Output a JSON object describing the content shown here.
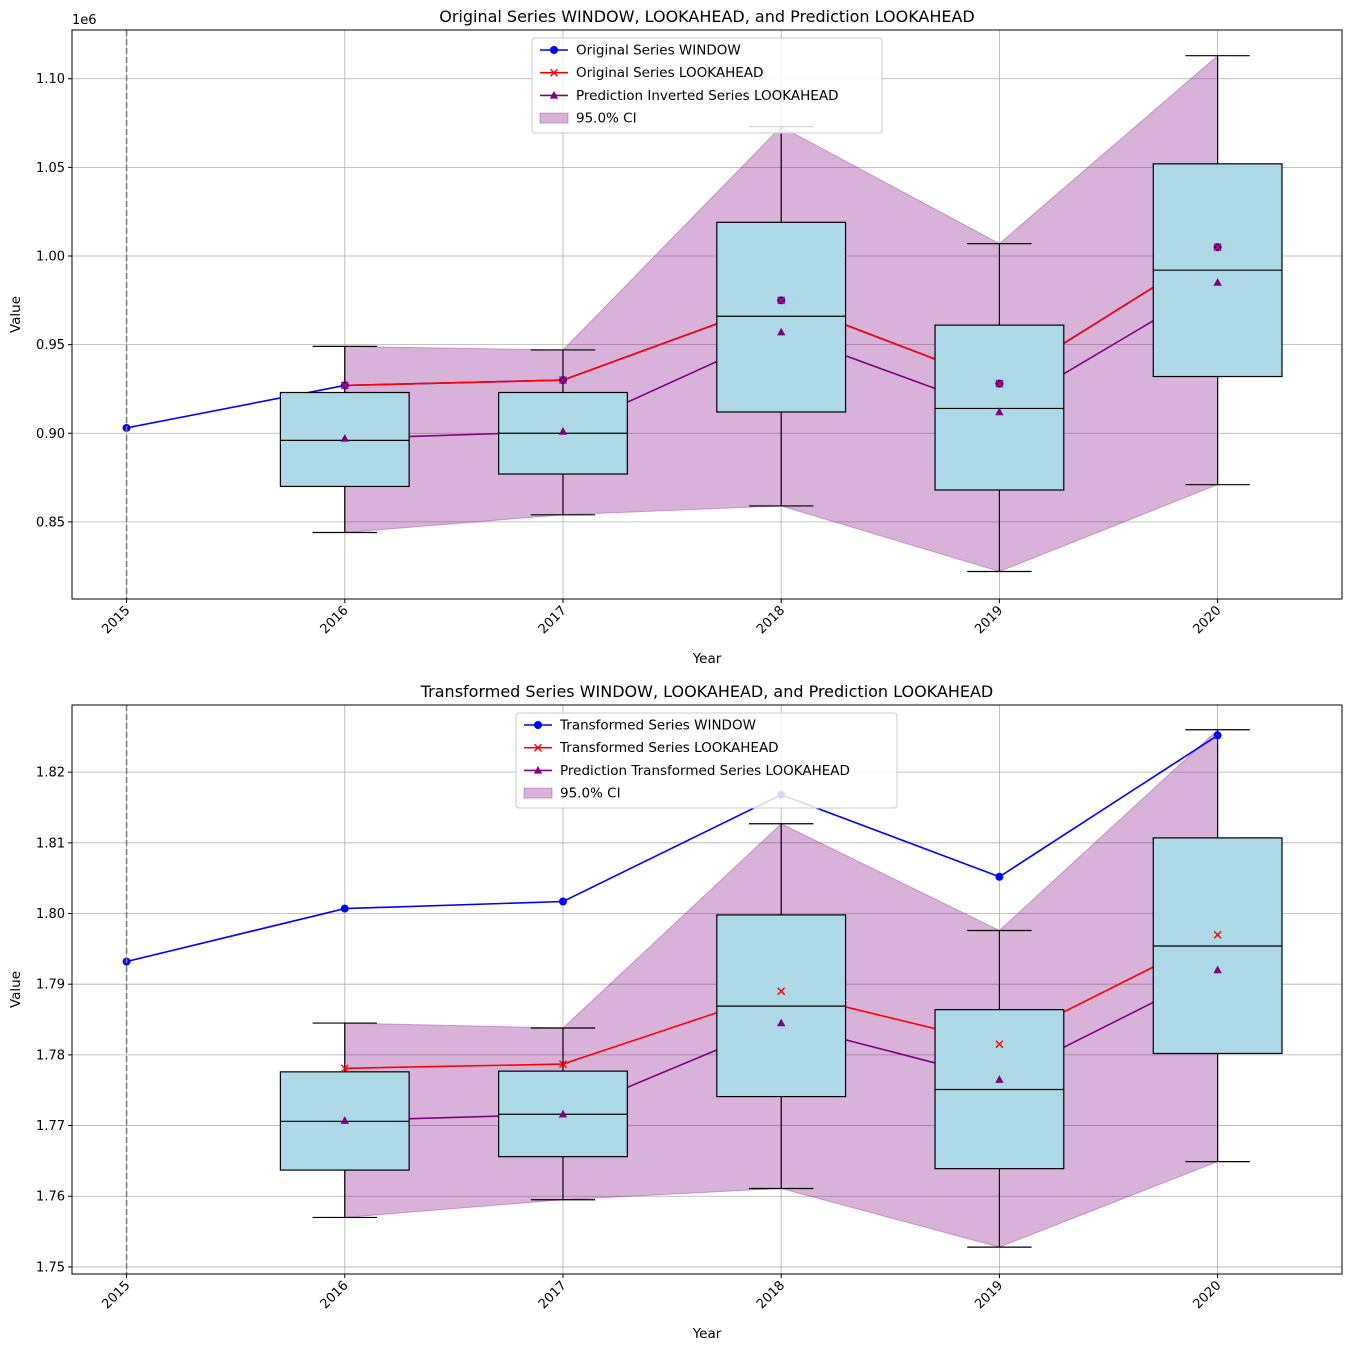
{
  "chart_data": [
    {
      "type": "line+box",
      "title": "Original Series WINDOW, LOOKAHEAD, and Prediction LOOKAHEAD",
      "xlabel": "Year",
      "ylabel": "Value",
      "offset_label": "1e6",
      "x": [
        2015,
        2016,
        2017,
        2018,
        2019,
        2020
      ],
      "xticks": [
        "2015",
        "2016",
        "2017",
        "2018",
        "2019",
        "2020"
      ],
      "ylim": [
        0.8065,
        1.1275
      ],
      "yticks": [
        0.85,
        0.9,
        0.95,
        1.0,
        1.05,
        1.1
      ],
      "ytick_labels": [
        "0.85",
        "0.90",
        "0.95",
        "1.00",
        "1.05",
        "1.10"
      ],
      "vline_x": 2015,
      "series": [
        {
          "name": "Original Series WINDOW",
          "color": "#0000ff",
          "marker": "circle",
          "x": [
            2015,
            2016,
            2017,
            2018,
            2019,
            2020
          ],
          "values": [
            0.903,
            0.927,
            0.93,
            0.975,
            0.928,
            1.005
          ]
        },
        {
          "name": "Original Series LOOKAHEAD",
          "color": "#ff0000",
          "marker": "x",
          "x": [
            2016,
            2017,
            2018,
            2019,
            2020
          ],
          "values": [
            0.927,
            0.93,
            0.975,
            0.928,
            1.005
          ]
        },
        {
          "name": "Prediction Inverted Series LOOKAHEAD",
          "color": "#800080",
          "marker": "triangle",
          "x": [
            2016,
            2017,
            2018,
            2019,
            2020
          ],
          "values": [
            0.897,
            0.901,
            0.957,
            0.912,
            0.985
          ]
        }
      ],
      "ci": {
        "name": "95.0% CI",
        "color": "#800080",
        "x": [
          2016,
          2017,
          2018,
          2019,
          2020
        ],
        "lower": [
          0.844,
          0.854,
          0.859,
          0.822,
          0.871
        ],
        "upper": [
          0.949,
          0.947,
          1.073,
          1.007,
          1.113
        ]
      },
      "boxes": [
        {
          "x": 2016,
          "whisker_low": 0.844,
          "q1": 0.87,
          "median": 0.896,
          "q3": 0.923,
          "whisker_high": 0.949
        },
        {
          "x": 2017,
          "whisker_low": 0.854,
          "q1": 0.877,
          "median": 0.9,
          "q3": 0.923,
          "whisker_high": 0.947
        },
        {
          "x": 2018,
          "whisker_low": 0.859,
          "q1": 0.912,
          "median": 0.966,
          "q3": 1.019,
          "whisker_high": 1.073
        },
        {
          "x": 2019,
          "whisker_low": 0.822,
          "q1": 0.868,
          "median": 0.914,
          "q3": 0.961,
          "whisker_high": 1.007
        },
        {
          "x": 2020,
          "whisker_low": 0.871,
          "q1": 0.932,
          "median": 0.992,
          "q3": 1.052,
          "whisker_high": 1.113
        }
      ],
      "box_color": "#add8e6",
      "legend_position": "upper-center",
      "grid": true
    },
    {
      "type": "line+box",
      "title": "Transformed Series WINDOW, LOOKAHEAD, and Prediction LOOKAHEAD",
      "xlabel": "Year",
      "ylabel": "Value",
      "offset_label": "",
      "x": [
        2015,
        2016,
        2017,
        2018,
        2019,
        2020
      ],
      "xticks": [
        "2015",
        "2016",
        "2017",
        "2018",
        "2019",
        "2020"
      ],
      "ylim": [
        1.749,
        1.8295
      ],
      "yticks": [
        1.75,
        1.76,
        1.77,
        1.78,
        1.79,
        1.8,
        1.81,
        1.82
      ],
      "ytick_labels": [
        "1.75",
        "1.76",
        "1.77",
        "1.78",
        "1.79",
        "1.80",
        "1.81",
        "1.82"
      ],
      "vline_x": 2015,
      "series": [
        {
          "name": "Transformed Series WINDOW",
          "color": "#0000ff",
          "marker": "circle",
          "x": [
            2015,
            2016,
            2017,
            2018,
            2019,
            2020
          ],
          "values": [
            1.7932,
            1.8007,
            1.8017,
            1.8168,
            1.8052,
            1.8252
          ]
        },
        {
          "name": "Transformed Series LOOKAHEAD",
          "color": "#ff0000",
          "marker": "x",
          "x": [
            2016,
            2017,
            2018,
            2019,
            2020
          ],
          "values": [
            1.7781,
            1.7787,
            1.789,
            1.7815,
            1.797
          ]
        },
        {
          "name": "Prediction Transformed Series LOOKAHEAD",
          "color": "#800080",
          "marker": "triangle",
          "x": [
            2016,
            2017,
            2018,
            2019,
            2020
          ],
          "values": [
            1.7707,
            1.7716,
            1.7845,
            1.7765,
            1.792
          ]
        }
      ],
      "ci": {
        "name": "95.0% CI",
        "color": "#800080",
        "x": [
          2016,
          2017,
          2018,
          2019,
          2020
        ],
        "lower": [
          1.757,
          1.7595,
          1.7611,
          1.7528,
          1.7649
        ],
        "upper": [
          1.7845,
          1.7838,
          1.8127,
          1.7976,
          1.826
        ]
      },
      "boxes": [
        {
          "x": 2016,
          "whisker_low": 1.757,
          "q1": 1.7637,
          "median": 1.7706,
          "q3": 1.7776,
          "whisker_high": 1.7845
        },
        {
          "x": 2017,
          "whisker_low": 1.7595,
          "q1": 1.7656,
          "median": 1.7716,
          "q3": 1.7777,
          "whisker_high": 1.7838
        },
        {
          "x": 2018,
          "whisker_low": 1.7611,
          "q1": 1.7741,
          "median": 1.7869,
          "q3": 1.7998,
          "whisker_high": 1.8127
        },
        {
          "x": 2019,
          "whisker_low": 1.7528,
          "q1": 1.7639,
          "median": 1.7751,
          "q3": 1.7864,
          "whisker_high": 1.7976
        },
        {
          "x": 2020,
          "whisker_low": 1.7649,
          "q1": 1.7802,
          "median": 1.7954,
          "q3": 1.8107,
          "whisker_high": 1.826
        }
      ],
      "box_color": "#add8e6",
      "legend_position": "upper-center",
      "grid": true
    }
  ]
}
